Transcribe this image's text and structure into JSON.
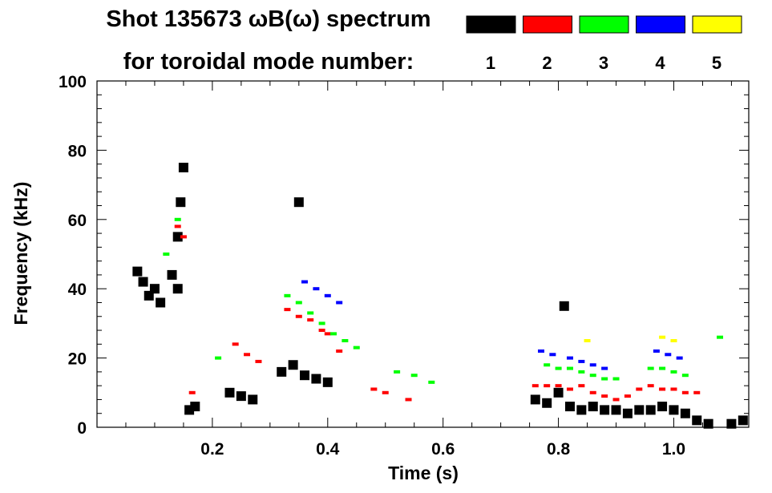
{
  "title_line1": "Shot 135673 ωB(ω) spectrum",
  "title_line2": "for toroidal mode number:",
  "legend": [
    {
      "label": "1",
      "color": "#000000"
    },
    {
      "label": "2",
      "color": "#ff0000"
    },
    {
      "label": "3",
      "color": "#00ff00"
    },
    {
      "label": "4",
      "color": "#0000ff"
    },
    {
      "label": "5",
      "color": "#ffff00"
    }
  ],
  "chart_data": {
    "type": "heatmap",
    "title": "Shot 135673 ωB(ω) spectrum",
    "subtitle": "for toroidal mode number:",
    "xlabel": "Time (s)",
    "ylabel": "Frequency (kHz)",
    "xlim": [
      0.0,
      1.13
    ],
    "ylim": [
      0,
      100
    ],
    "x_ticks": [
      0.2,
      0.4,
      0.6,
      0.8,
      1.0
    ],
    "x_tick_labels": [
      "0.2",
      "0.4",
      "0.6",
      "0.8",
      "1.0"
    ],
    "y_ticks": [
      0,
      20,
      40,
      60,
      80,
      100
    ],
    "y_tick_labels": [
      "0",
      "20",
      "40",
      "60",
      "80",
      "100"
    ],
    "grid": false,
    "legend_placement": "top-right",
    "series": [
      {
        "name": "1",
        "color": "#000000",
        "points": [
          [
            0.07,
            45
          ],
          [
            0.08,
            42
          ],
          [
            0.09,
            38
          ],
          [
            0.1,
            40
          ],
          [
            0.11,
            36
          ],
          [
            0.13,
            44
          ],
          [
            0.14,
            55
          ],
          [
            0.145,
            65
          ],
          [
            0.15,
            75
          ],
          [
            0.14,
            40
          ],
          [
            0.16,
            5
          ],
          [
            0.17,
            6
          ],
          [
            0.23,
            10
          ],
          [
            0.25,
            9
          ],
          [
            0.27,
            8
          ],
          [
            0.32,
            16
          ],
          [
            0.34,
            18
          ],
          [
            0.36,
            15
          ],
          [
            0.38,
            14
          ],
          [
            0.4,
            13
          ],
          [
            0.35,
            65
          ],
          [
            0.76,
            8
          ],
          [
            0.78,
            7
          ],
          [
            0.8,
            10
          ],
          [
            0.81,
            35
          ],
          [
            0.82,
            6
          ],
          [
            0.84,
            5
          ],
          [
            0.86,
            6
          ],
          [
            0.88,
            5
          ],
          [
            0.9,
            5
          ],
          [
            0.92,
            4
          ],
          [
            0.94,
            5
          ],
          [
            0.96,
            5
          ],
          [
            0.98,
            6
          ],
          [
            1.0,
            5
          ],
          [
            1.02,
            4
          ],
          [
            1.04,
            2
          ],
          [
            1.06,
            1
          ],
          [
            1.1,
            1
          ],
          [
            1.12,
            2
          ]
        ]
      },
      {
        "name": "2",
        "color": "#ff0000",
        "points": [
          [
            0.14,
            58
          ],
          [
            0.15,
            55
          ],
          [
            0.165,
            10
          ],
          [
            0.24,
            24
          ],
          [
            0.26,
            21
          ],
          [
            0.28,
            19
          ],
          [
            0.33,
            34
          ],
          [
            0.35,
            32
          ],
          [
            0.37,
            31
          ],
          [
            0.39,
            28
          ],
          [
            0.4,
            27
          ],
          [
            0.42,
            22
          ],
          [
            0.48,
            11
          ],
          [
            0.5,
            10
          ],
          [
            0.54,
            8
          ],
          [
            0.76,
            12
          ],
          [
            0.78,
            12
          ],
          [
            0.8,
            12
          ],
          [
            0.82,
            11
          ],
          [
            0.84,
            12
          ],
          [
            0.86,
            10
          ],
          [
            0.88,
            9
          ],
          [
            0.9,
            8
          ],
          [
            0.92,
            9
          ],
          [
            0.94,
            11
          ],
          [
            0.96,
            12
          ],
          [
            0.98,
            11
          ],
          [
            1.0,
            11
          ],
          [
            1.02,
            10
          ],
          [
            1.04,
            10
          ]
        ]
      },
      {
        "name": "3",
        "color": "#00ff00",
        "points": [
          [
            0.14,
            60
          ],
          [
            0.12,
            50
          ],
          [
            0.21,
            20
          ],
          [
            0.33,
            38
          ],
          [
            0.35,
            36
          ],
          [
            0.37,
            33
          ],
          [
            0.39,
            30
          ],
          [
            0.41,
            27
          ],
          [
            0.43,
            25
          ],
          [
            0.45,
            23
          ],
          [
            0.52,
            16
          ],
          [
            0.55,
            15
          ],
          [
            0.58,
            13
          ],
          [
            0.78,
            18
          ],
          [
            0.8,
            17
          ],
          [
            0.82,
            17
          ],
          [
            0.84,
            16
          ],
          [
            0.86,
            15
          ],
          [
            0.88,
            14
          ],
          [
            0.9,
            14
          ],
          [
            0.96,
            17
          ],
          [
            0.98,
            17
          ],
          [
            1.0,
            16
          ],
          [
            1.02,
            15
          ],
          [
            1.08,
            26
          ]
        ]
      },
      {
        "name": "4",
        "color": "#0000ff",
        "points": [
          [
            0.36,
            42
          ],
          [
            0.38,
            40
          ],
          [
            0.4,
            38
          ],
          [
            0.42,
            36
          ],
          [
            0.77,
            22
          ],
          [
            0.79,
            21
          ],
          [
            0.82,
            20
          ],
          [
            0.84,
            19
          ],
          [
            0.86,
            18
          ],
          [
            0.88,
            17
          ],
          [
            0.97,
            22
          ],
          [
            0.99,
            21
          ],
          [
            1.01,
            20
          ]
        ]
      },
      {
        "name": "5",
        "color": "#ffff00",
        "points": [
          [
            0.85,
            25
          ],
          [
            0.98,
            26
          ],
          [
            1.0,
            25
          ]
        ]
      }
    ]
  }
}
